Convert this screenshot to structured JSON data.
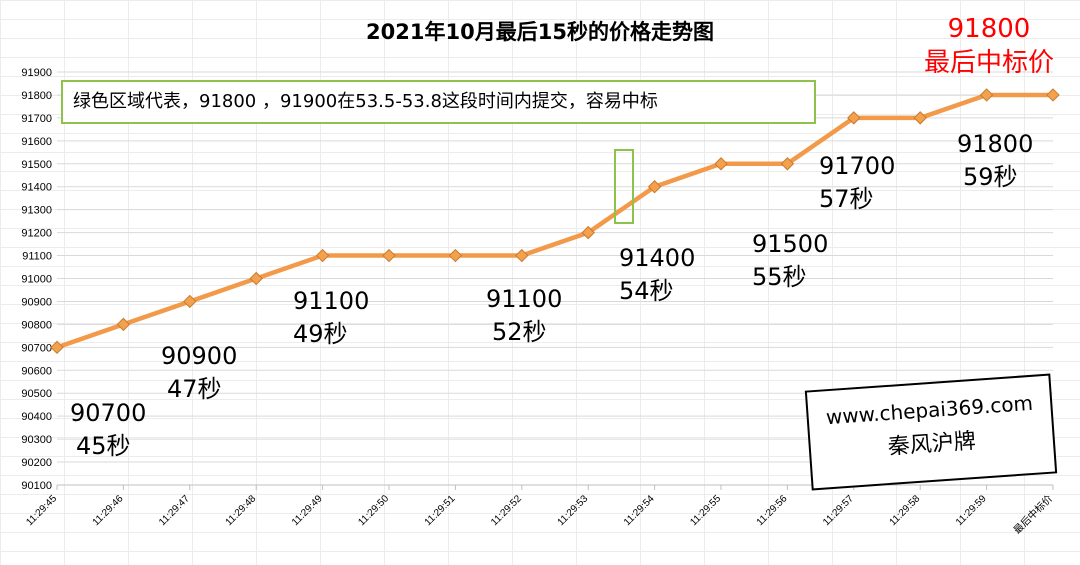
{
  "chart_data": {
    "type": "line",
    "title": "2021年10月最后15秒的价格走势图",
    "categories": [
      "11:29:45",
      "11:29:46",
      "11:29:47",
      "11:29:48",
      "11:29:49",
      "11:29:50",
      "11:29:51",
      "11:29:52",
      "11:29:53",
      "11:29:54",
      "11:29:55",
      "11:29:56",
      "11:29:57",
      "11:29:58",
      "11:29:59",
      "最后中标价"
    ],
    "values": [
      90700,
      90800,
      90900,
      91000,
      91100,
      91100,
      91100,
      91100,
      91200,
      91400,
      91500,
      91500,
      91700,
      91700,
      91800,
      91800
    ],
    "ylim": [
      90100,
      91900
    ],
    "y_ticks": [
      91900,
      91800,
      91700,
      91600,
      91500,
      91400,
      91300,
      91200,
      91100,
      91000,
      90900,
      90800,
      90700,
      90600,
      90500,
      90400,
      90300,
      90200,
      90100
    ],
    "grid": true,
    "line_color": "#f39a4a",
    "marker_color": "#f3a14c",
    "annotations": [
      {
        "price": "90700",
        "time": "45秒"
      },
      {
        "price": "90900",
        "time": "47秒"
      },
      {
        "price": "91100",
        "time": "49秒"
      },
      {
        "price": "91100",
        "time": "52秒"
      },
      {
        "price": "91400",
        "time": "54秒"
      },
      {
        "price": "91500",
        "time": "55秒"
      },
      {
        "price": "91700",
        "time": "57秒"
      },
      {
        "price": "91800",
        "time": "59秒"
      }
    ]
  },
  "final_price": {
    "value": "91800",
    "label": "最后中标价"
  },
  "note_text": "绿色区域代表，91800 ，91900在53.5-53.8这段时间内提交，容易中标",
  "watermark": {
    "url": "www.chepai369.com",
    "name": "秦风沪牌"
  },
  "colors": {
    "accent_red": "#ff0000",
    "highlight_green": "#8dc34a"
  }
}
